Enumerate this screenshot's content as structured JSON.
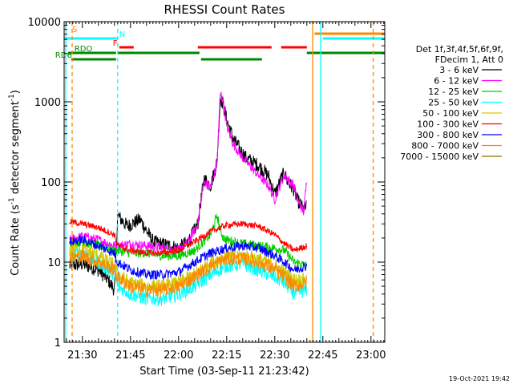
{
  "chart_data": {
    "type": "line",
    "title": "RHESSI Count Rates",
    "xlabel": "Start Time (03-Sep-11 21:23:42)",
    "ylabel_main": "Count Rate (s",
    "ylabel_sup": "-1",
    "ylabel_tail": " detector segment",
    "ylabel_sup2": "-1",
    "ylabel_close": ")",
    "y_scale": "log",
    "ylim": [
      1,
      10000
    ],
    "xlim_minutes": [
      -5.7,
      94.3
    ],
    "xtick_labels": [
      {
        "label": "21:30",
        "t": 0
      },
      {
        "label": "21:45",
        "t": 15
      },
      {
        "label": "22:00",
        "t": 30
      },
      {
        "label": "22:15",
        "t": 45
      },
      {
        "label": "22:30",
        "t": 60
      },
      {
        "label": "22:45",
        "t": 75
      },
      {
        "label": "23:00",
        "t": 90
      }
    ],
    "ytick_labels": [
      {
        "label": "1",
        "v": 1
      },
      {
        "label": "10",
        "v": 10
      },
      {
        "label": "100",
        "v": 100
      },
      {
        "label": "1000",
        "v": 1000
      },
      {
        "label": "10000",
        "v": 10000
      }
    ],
    "legend_header": [
      "Det 1f,3f,4f,5f,6f,9f,",
      "FDecim 1, Att 0"
    ],
    "legend_placement": "right",
    "series": [
      {
        "name": "3 - 6 keV",
        "color": "#000000",
        "level": "low",
        "t": [
          -4,
          0,
          5,
          8,
          10,
          11,
          14,
          18,
          22,
          27,
          30,
          33,
          36,
          37,
          38,
          40,
          42,
          43,
          44,
          45,
          47,
          49,
          51,
          55,
          58,
          60,
          62,
          63,
          64,
          66,
          67,
          69,
          70
        ],
        "v": [
          9,
          9.5,
          8,
          6,
          4.5,
          38,
          28,
          34,
          18,
          16,
          15,
          18,
          30,
          60,
          110,
          90,
          180,
          1150,
          900,
          600,
          350,
          260,
          200,
          160,
          120,
          70,
          110,
          130,
          100,
          80,
          60,
          45,
          50
        ]
      },
      {
        "name": "6 - 12 keV",
        "color": "#ff00ff",
        "level": "mid",
        "t": [
          -4,
          0,
          5,
          10,
          11,
          15,
          20,
          25,
          30,
          33,
          36,
          37,
          38,
          40,
          42,
          43,
          44,
          45,
          47,
          50,
          55,
          58,
          60,
          62,
          63,
          64,
          66,
          67,
          69,
          70
        ],
        "v": [
          19,
          21,
          19,
          16,
          16,
          17,
          16,
          15,
          14,
          18,
          30,
          60,
          100,
          85,
          170,
          1300,
          1000,
          500,
          300,
          200,
          120,
          90,
          60,
          100,
          120,
          110,
          90,
          60,
          42,
          110
        ]
      },
      {
        "name": "12 - 25 keV",
        "color": "#00cc00",
        "level": "mid",
        "t": [
          -4,
          0,
          5,
          10,
          11,
          15,
          20,
          25,
          30,
          35,
          40,
          42,
          43,
          44,
          45,
          47,
          50,
          55,
          60,
          63,
          66,
          70
        ],
        "v": [
          17,
          18,
          16,
          14,
          14,
          13,
          13,
          12,
          12,
          14,
          22,
          38,
          25,
          20,
          19,
          18,
          17,
          16,
          15,
          14,
          10,
          9
        ]
      },
      {
        "name": "25 - 50 keV",
        "color": "#00ffff",
        "level": "low",
        "t": [
          -4,
          0,
          5,
          10,
          11,
          15,
          20,
          25,
          30,
          35,
          40,
          45,
          50,
          55,
          60,
          63,
          66,
          70
        ],
        "v": [
          12,
          13,
          10,
          7,
          5,
          4,
          3.5,
          3.5,
          4,
          5,
          7,
          9,
          9.5,
          8,
          6.5,
          5.5,
          4,
          4.5
        ]
      },
      {
        "name": "50 - 100 keV",
        "color": "#cccc00",
        "level": "low",
        "t": [
          -4,
          0,
          5,
          10,
          11,
          15,
          20,
          25,
          30,
          35,
          40,
          45,
          50,
          55,
          60,
          63,
          66,
          70
        ],
        "v": [
          14,
          15,
          12,
          9,
          7,
          5.5,
          5,
          5,
          5.5,
          7,
          10,
          12,
          12,
          11,
          9,
          7.5,
          6,
          6
        ]
      },
      {
        "name": "100 - 300 keV",
        "color": "#ff0000",
        "level": "high",
        "t": [
          -4,
          0,
          5,
          10,
          11,
          15,
          20,
          25,
          30,
          35,
          40,
          45,
          50,
          55,
          60,
          63,
          66,
          70
        ],
        "v": [
          32,
          30,
          27,
          22,
          16,
          14,
          13,
          13,
          14,
          18,
          24,
          29,
          30,
          28,
          22,
          17,
          14,
          16
        ]
      },
      {
        "name": "300 - 800 keV",
        "color": "#0000ff",
        "level": "mid",
        "t": [
          -4,
          0,
          5,
          10,
          11,
          15,
          20,
          25,
          30,
          35,
          40,
          45,
          50,
          55,
          60,
          63,
          66,
          70
        ],
        "v": [
          18,
          19,
          16,
          13,
          10,
          8,
          7,
          7,
          7.5,
          10,
          13,
          15,
          16,
          15,
          12,
          10,
          8,
          9
        ]
      },
      {
        "name": "800 - 7000 keV",
        "color": "#ff8800",
        "level": "low",
        "t": [
          -4,
          0,
          5,
          10,
          11,
          15,
          20,
          25,
          30,
          35,
          40,
          45,
          50,
          55,
          60,
          63,
          66,
          70
        ],
        "v": [
          11,
          12,
          10,
          8,
          6.5,
          5,
          4.5,
          4.5,
          5,
          6.5,
          9,
          11,
          11,
          10,
          8,
          6.5,
          5,
          5.5
        ]
      },
      {
        "name": "7000 - 15000 keV",
        "color": "#996600",
        "level": "none",
        "t": [],
        "v": []
      }
    ],
    "vlines": [
      {
        "t": -5.2,
        "color": "#00ffff",
        "style": "solid"
      },
      {
        "t": -3.2,
        "color": "#ff8800",
        "style": "dash"
      },
      {
        "t": 11,
        "color": "#00ffff",
        "style": "dash"
      },
      {
        "t": 71.8,
        "color": "#ff8800",
        "style": "solid"
      },
      {
        "t": 74.3,
        "color": "#00ffff",
        "style": "solid"
      },
      {
        "t": 90.7,
        "color": "#ff8800",
        "style": "dash"
      }
    ],
    "flag_bars": [
      {
        "label": "S",
        "color": "#ff8800",
        "label_t": -3.2,
        "level": 42,
        "segments": [
          [
            72.4,
            94.3
          ]
        ]
      },
      {
        "label": "N",
        "color": "#00ffff",
        "label_t": 11.5,
        "level": 48,
        "segments": [
          [
            -5.7,
            11
          ],
          [
            75,
            94.3
          ]
        ]
      },
      {
        "label": "F",
        "color": "#ff0000",
        "label_t": 9.5,
        "level": 59,
        "segments": [
          [
            11.5,
            16
          ],
          [
            36,
            59
          ],
          [
            62,
            70
          ]
        ]
      },
      {
        "label": "RDO",
        "color": "#008800",
        "label_t": -2.5,
        "level": 66,
        "segments": [
          [
            -4.5,
            10.5
          ],
          [
            11,
            36.5
          ],
          [
            70,
            94.3
          ]
        ]
      },
      {
        "label": "RD6",
        "color": "#008800",
        "label_t": -8.5,
        "level": 74,
        "segments": [
          [
            -3.5,
            10.5
          ],
          [
            37,
            56
          ]
        ]
      }
    ],
    "footer_date": "19-Oct-2021 19:42"
  }
}
